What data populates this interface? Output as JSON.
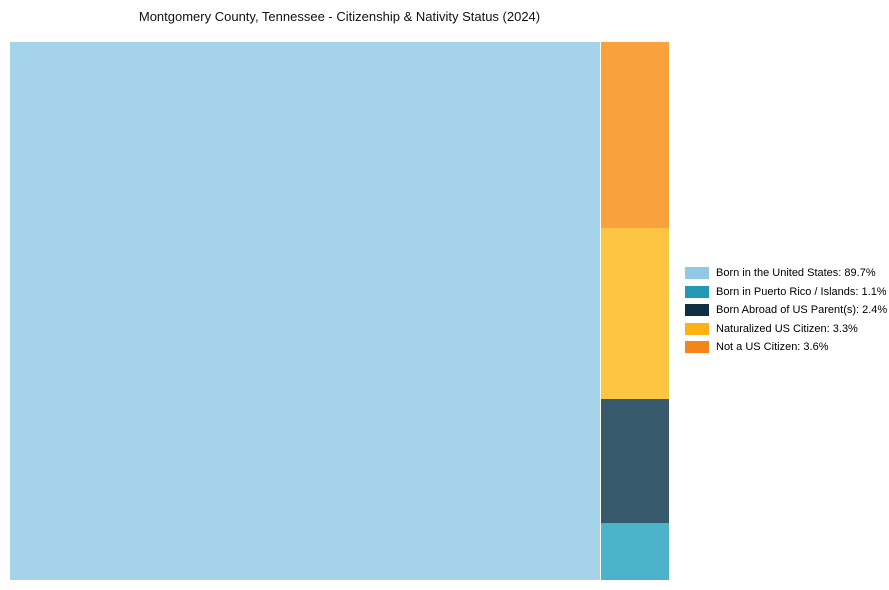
{
  "page": {
    "background": "#ffffff"
  },
  "chart_data": {
    "type": "treemap",
    "title": "Montgomery County, Tennessee - Citizenship & Nativity Status (2024)",
    "categories": [
      "Born in the United States",
      "Born in Puerto Rico / Islands",
      "Born Abroad of US Parent(s)",
      "Naturalized US Citizen",
      "Not a US Citizen"
    ],
    "values": [
      89.7,
      1.1,
      2.4,
      3.3,
      3.6
    ],
    "unit": "%",
    "tile_colors": [
      "#a5d3ea",
      "#4db3ca",
      "#37596c",
      "#fdc541",
      "#f9a13c"
    ],
    "legend_swatch_colors": [
      "#8fc9e5",
      "#2398b5",
      "#0f2e44",
      "#fcb216",
      "#f58518"
    ],
    "legend_labels": [
      "Born in the United States: 89.7%",
      "Born in Puerto Rico / Islands: 1.1%",
      "Born Abroad of US Parent(s): 2.4%",
      "Naturalized US Citizen: 3.3%",
      "Not a US Citizen: 3.6%"
    ],
    "layout": {
      "main_tile_index": 0,
      "side_column_order": [
        4,
        3,
        2,
        1
      ],
      "side_column_note": "largest value at top, descending downward",
      "legend_position": "right-center",
      "grid": false,
      "tile_labels_shown": false
    }
  }
}
